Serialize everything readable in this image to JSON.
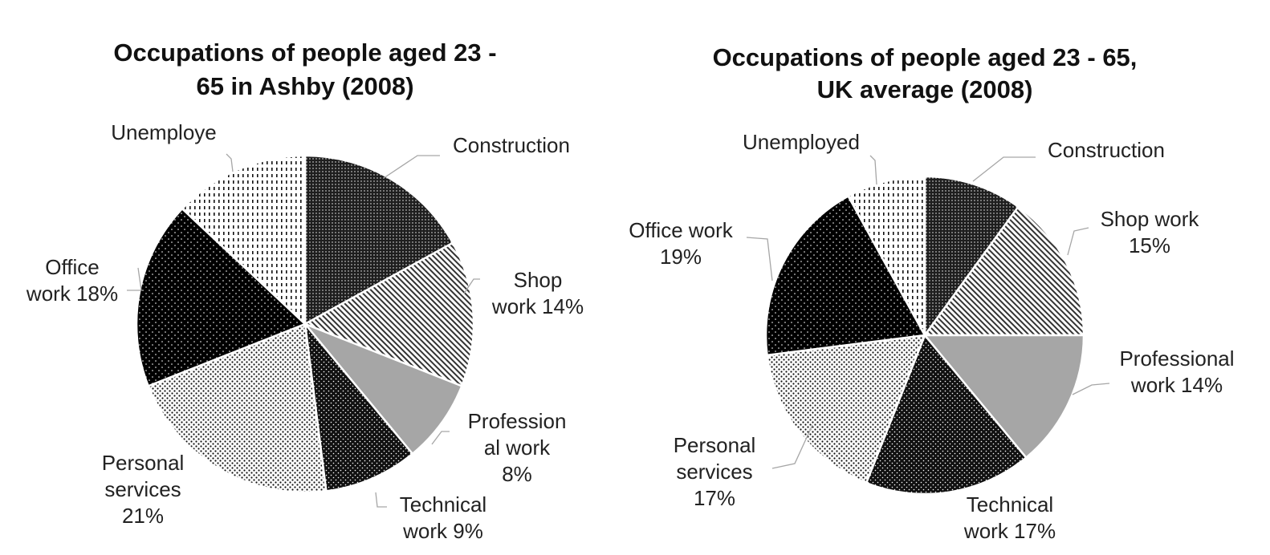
{
  "colors": {
    "background": "#ffffff",
    "text": "#222222",
    "leader": "#a6a6a6",
    "slice_border": "#ffffff",
    "fill_professional": "#a6a6a6"
  },
  "chart_data": [
    {
      "type": "pie",
      "title_lines": [
        "Occupations of people aged 23 -",
        "65 in Ashby (2008)"
      ],
      "slices": [
        {
          "name": "Construction",
          "value": 17,
          "pattern": "fine-dots-dark",
          "label_lines": [
            "Construction"
          ]
        },
        {
          "name": "Shop work",
          "value": 14,
          "pattern": "diagonal-stripes",
          "label_lines": [
            "Shop",
            "work 14%"
          ]
        },
        {
          "name": "Professional work",
          "value": 8,
          "pattern": "solid-gray",
          "label_lines": [
            "Profession",
            "al work",
            "8%"
          ]
        },
        {
          "name": "Technical work",
          "value": 9,
          "pattern": "dots-dark",
          "label_lines": [
            "Technical",
            "work 9%"
          ]
        },
        {
          "name": "Personal services",
          "value": 21,
          "pattern": "dots-light",
          "label_lines": [
            "Personal",
            "services",
            "21%"
          ]
        },
        {
          "name": "Office work",
          "value": 18,
          "pattern": "black-dots",
          "label_lines": [
            "Office",
            "work 18%"
          ]
        },
        {
          "name": "Unemployed",
          "value": 13,
          "pattern": "vertical-dashes",
          "label_lines": [
            "Unemploye"
          ]
        }
      ]
    },
    {
      "type": "pie",
      "title_lines": [
        "Occupations of people aged 23 - 65,",
        "UK average (2008)"
      ],
      "slices": [
        {
          "name": "Construction",
          "value": 10,
          "pattern": "fine-dots-dark",
          "label_lines": [
            "Construction"
          ]
        },
        {
          "name": "Shop work",
          "value": 15,
          "pattern": "diagonal-stripes",
          "label_lines": [
            "Shop work",
            "15%"
          ]
        },
        {
          "name": "Professional work",
          "value": 14,
          "pattern": "solid-gray",
          "label_lines": [
            "Professional",
            "work  14%"
          ]
        },
        {
          "name": "Technical work",
          "value": 17,
          "pattern": "dots-dark",
          "label_lines": [
            "Technical",
            "work 17%"
          ]
        },
        {
          "name": "Personal services",
          "value": 17,
          "pattern": "dots-light",
          "label_lines": [
            "Personal",
            "services",
            "17%"
          ]
        },
        {
          "name": "Office work",
          "value": 19,
          "pattern": "black-dots",
          "label_lines": [
            "Office work",
            "19%"
          ]
        },
        {
          "name": "Unemployed",
          "value": 8,
          "pattern": "vertical-dashes",
          "label_lines": [
            "Unemployed"
          ]
        }
      ]
    }
  ]
}
